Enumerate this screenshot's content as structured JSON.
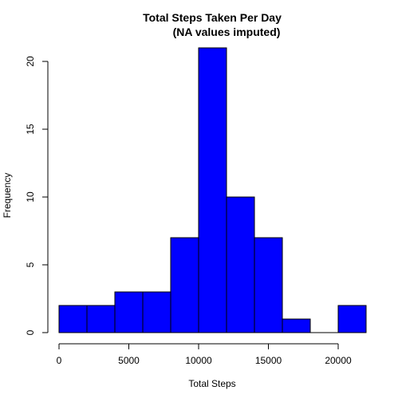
{
  "chart_data": {
    "type": "bar",
    "title": "Total Steps Taken Per Day",
    "subtitle": "(NA values imputed)",
    "xlabel": "Total Steps",
    "ylabel": "Frequency",
    "bins": [
      {
        "x0": 0,
        "x1": 2000,
        "count": 2
      },
      {
        "x0": 2000,
        "x1": 4000,
        "count": 2
      },
      {
        "x0": 4000,
        "x1": 6000,
        "count": 3
      },
      {
        "x0": 6000,
        "x1": 8000,
        "count": 3
      },
      {
        "x0": 8000,
        "x1": 10000,
        "count": 7
      },
      {
        "x0": 10000,
        "x1": 12000,
        "count": 21
      },
      {
        "x0": 12000,
        "x1": 14000,
        "count": 10
      },
      {
        "x0": 14000,
        "x1": 16000,
        "count": 7
      },
      {
        "x0": 16000,
        "x1": 18000,
        "count": 1
      },
      {
        "x0": 18000,
        "x1": 20000,
        "count": 0
      },
      {
        "x0": 20000,
        "x1": 22000,
        "count": 2
      }
    ],
    "xlim": [
      0,
      22000
    ],
    "ylim": [
      0,
      21
    ],
    "xticks": [
      0,
      5000,
      10000,
      15000,
      20000
    ],
    "yticks": [
      0,
      5,
      10,
      15,
      20
    ],
    "bar_color": "#0000ff",
    "grid": false,
    "legend": "none"
  }
}
